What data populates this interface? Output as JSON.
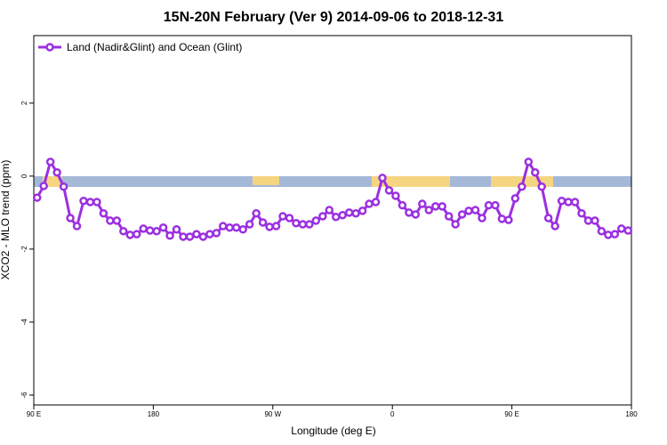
{
  "chart_data": {
    "type": "line",
    "title": "15N-20N February (Ver 9)   2014-09-06 to 2018-12-31",
    "x_label": "Longitude (deg E)",
    "y_label": "XCO2 - MLO trend (ppm)",
    "legend_position": "top-left",
    "x": [
      92.5,
      97.5,
      102.5,
      107.5,
      112.5,
      117.5,
      122.5,
      127.5,
      132.5,
      137.5,
      142.5,
      147.5,
      152.5,
      157.5,
      162.5,
      167.5,
      172.5,
      177.5,
      182.5,
      187.5,
      192.5,
      197.5,
      202.5,
      207.5,
      212.5,
      217.5,
      222.5,
      227.5,
      232.5,
      237.5,
      242.5,
      247.5,
      252.5,
      257.5,
      262.5,
      267.5,
      272.5,
      277.5,
      282.5,
      287.5,
      292.5,
      297.5,
      302.5,
      307.5,
      312.5,
      317.5,
      322.5,
      327.5,
      332.5,
      337.5,
      342.5,
      347.5,
      352.5,
      357.5,
      362.5,
      367.5,
      372.5,
      377.5,
      382.5,
      387.5,
      392.5,
      397.5,
      402.5,
      407.5,
      412.5,
      417.5,
      422.5,
      427.5,
      432.5,
      437.5,
      442.5,
      447.5,
      452.5,
      457.5,
      462.5,
      467.5,
      472.5,
      477.5,
      482.5,
      487.5,
      492.5,
      497.5,
      502.5,
      507.5,
      512.5,
      517.5,
      522.5,
      527.5,
      532.5,
      537.5
    ],
    "series": [
      {
        "name": "Land (Nadir&Glint) and Ocean (Glint)",
        "color": "#9b30e0",
        "values": [
          -0.59,
          -0.27,
          0.39,
          0.1,
          -0.29,
          -1.15,
          -1.37,
          -0.68,
          -0.71,
          -0.71,
          -1.02,
          -1.22,
          -1.22,
          -1.51,
          -1.61,
          -1.59,
          -1.44,
          -1.49,
          -1.51,
          -1.41,
          -1.63,
          -1.46,
          -1.66,
          -1.66,
          -1.59,
          -1.66,
          -1.59,
          -1.56,
          -1.37,
          -1.41,
          -1.41,
          -1.46,
          -1.32,
          -1.02,
          -1.27,
          -1.39,
          -1.37,
          -1.1,
          -1.15,
          -1.29,
          -1.32,
          -1.32,
          -1.22,
          -1.1,
          -0.93,
          -1.12,
          -1.07,
          -1.0,
          -1.02,
          -0.95,
          -0.76,
          -0.71,
          -0.05,
          -0.39,
          -0.54,
          -0.8,
          -1.0,
          -1.05,
          -0.76,
          -0.93,
          -0.83,
          -0.83,
          -1.1,
          -1.32,
          -1.05,
          -0.95,
          -0.93,
          -1.15,
          -0.8,
          -0.8,
          -1.17,
          -1.2,
          -0.61,
          -0.29,
          0.39,
          0.1,
          -0.29,
          -1.15,
          -1.37,
          -0.68,
          -0.71,
          -0.71,
          -1.02,
          -1.22,
          -1.22,
          -1.51,
          -1.61,
          -1.59,
          -1.44,
          -1.49
        ]
      }
    ],
    "xlim": [
      90,
      540
    ],
    "xticks": [
      {
        "value": 90,
        "label": "90 E"
      },
      {
        "value": 180,
        "label": "180"
      },
      {
        "value": 270,
        "label": "90 W"
      },
      {
        "value": 360,
        "label": "0"
      },
      {
        "value": 450,
        "label": "90 E"
      },
      {
        "value": 540,
        "label": "180"
      }
    ],
    "ylim": [
      -6.27,
      3.85
    ],
    "yticks": [
      -6,
      -4,
      -2,
      0,
      2
    ]
  }
}
